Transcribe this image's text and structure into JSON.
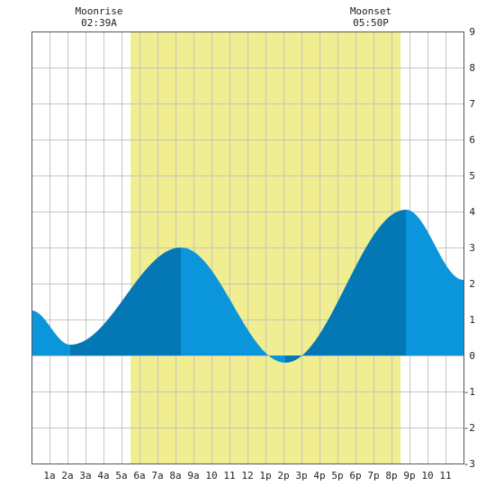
{
  "chart_data": {
    "type": "area",
    "title": "",
    "xlabel": "",
    "ylabel": "",
    "xlim": [
      0,
      24
    ],
    "ylim": [
      -3,
      9
    ],
    "grid": true,
    "x_tick_labels": [
      "1a",
      "2a",
      "3a",
      "4a",
      "5a",
      "6a",
      "7a",
      "8a",
      "9a",
      "10",
      "11",
      "12",
      "1p",
      "2p",
      "3p",
      "4p",
      "5p",
      "6p",
      "7p",
      "8p",
      "9p",
      "10",
      "11"
    ],
    "y_ticks": [
      -3,
      -2,
      -1,
      0,
      1,
      2,
      3,
      4,
      5,
      6,
      7,
      8,
      9
    ],
    "moonrise": {
      "label": "Moonrise",
      "time": "02:39A",
      "hour": 5.5
    },
    "moonset": {
      "label": "Moonset",
      "time": "05:50P",
      "hour": 20.5
    },
    "series": [
      {
        "values_x": [
          0,
          2.15,
          8.3,
          14.1,
          20.8,
          24
        ],
        "values_y": [
          1.25,
          0.3,
          3.0,
          -0.2,
          4.05,
          2.1
        ]
      }
    ],
    "colors": {
      "moon_band": "#f0ee90",
      "area_light": "#0b96dc",
      "area_dark": "#0378b4",
      "grid": "#c4c4c4",
      "axis": "#555555"
    }
  }
}
